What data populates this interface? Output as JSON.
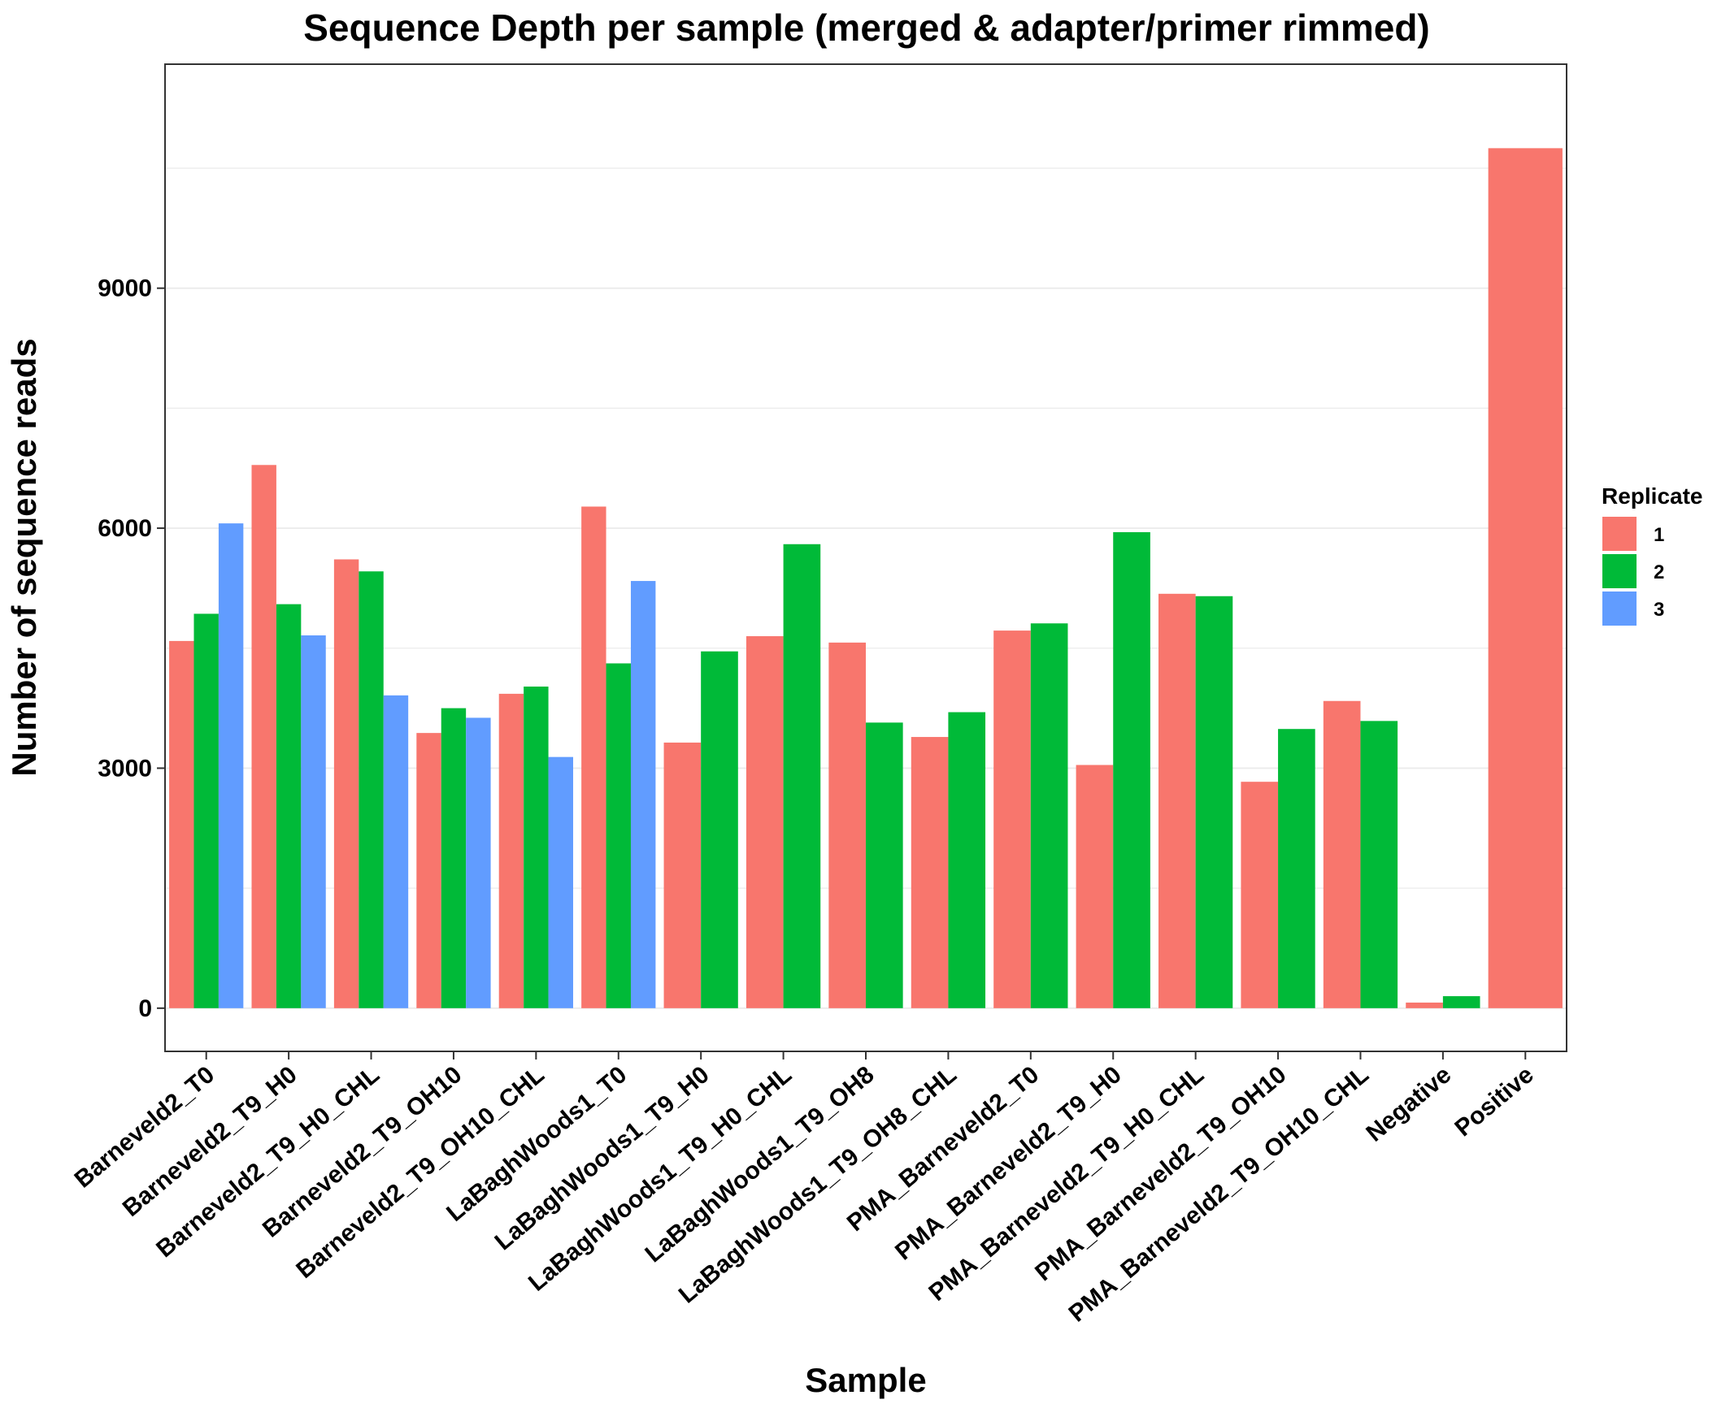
{
  "chart_data": {
    "type": "bar",
    "title": "Sequence Depth per sample (merged & adapter/primer rimmed)",
    "xlabel": "Sample",
    "ylabel": "Number of sequence reads",
    "ylim": [
      -540,
      11800
    ],
    "yticks": [
      0,
      3000,
      6000,
      9000
    ],
    "minor_gridlines": [
      1500,
      4500,
      7500,
      10500
    ],
    "grid": true,
    "legend_position": "right",
    "legend_title": "Replicate",
    "categories": [
      "Barneveld2_T0",
      "Barneveld2_T9_H0",
      "Barneveld2_T9_H0_CHL",
      "Barneveld2_T9_OH10",
      "Barneveld2_T9_OH10_CHL",
      "LaBaghWoods1_T0",
      "LaBaghWoods1_T9_H0",
      "LaBaghWoods1_T9_H0_CHL",
      "LaBaghWoods1_T9_OH8",
      "LaBaghWoods1_T9_OH8_CHL",
      "PMA_Barneveld2_T0",
      "PMA_Barneveld2_T9_H0",
      "PMA_Barneveld2_T9_H0_CHL",
      "PMA_Barneveld2_T9_OH10",
      "PMA_Barneveld2_T9_OH10_CHL",
      "Negative",
      "Positive"
    ],
    "series": [
      {
        "name": "1",
        "color": "#F8766D",
        "values": [
          4590,
          6790,
          5610,
          3440,
          3930,
          6270,
          3320,
          4650,
          4570,
          3390,
          4720,
          3040,
          5180,
          2830,
          3840,
          70,
          10750
        ]
      },
      {
        "name": "2",
        "color": "#00BA38",
        "values": [
          4930,
          5050,
          5460,
          3750,
          4020,
          4310,
          4460,
          5800,
          3570,
          3700,
          4810,
          5950,
          5150,
          3490,
          3590,
          150,
          null
        ]
      },
      {
        "name": "3",
        "color": "#619CFF",
        "values": [
          6060,
          4660,
          3910,
          3630,
          3140,
          5340,
          null,
          null,
          null,
          null,
          null,
          null,
          null,
          null,
          null,
          null,
          null
        ]
      }
    ]
  }
}
